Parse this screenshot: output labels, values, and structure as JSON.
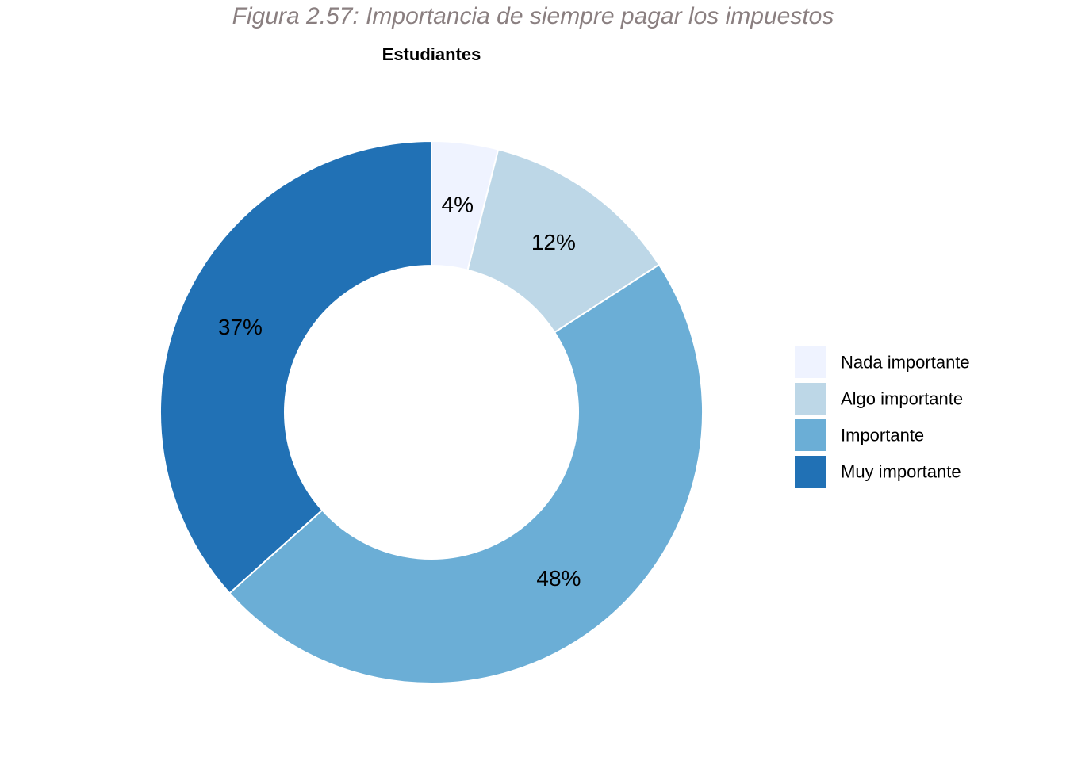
{
  "figure_caption": "Figura 2.57: Importancia de siempre pagar los impuestos",
  "chart_data": {
    "type": "pie",
    "donut": true,
    "title": "Estudiantes",
    "categories": [
      "Nada importante",
      "Algo importante",
      "Importante",
      "Muy importante"
    ],
    "values": [
      4,
      12,
      48,
      37
    ],
    "labels": [
      "4%",
      "12%",
      "48%",
      "37%"
    ],
    "colors": [
      "#eff3ff",
      "#bdd7e7",
      "#6baed6",
      "#2171b5"
    ],
    "legend_position": "right",
    "start": "top",
    "direction": "clockwise"
  }
}
